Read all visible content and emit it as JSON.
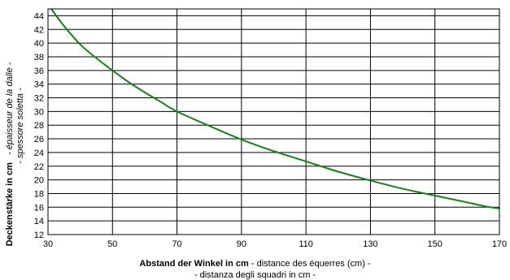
{
  "chart_data": {
    "type": "line",
    "title": "",
    "xlabel": {
      "bold": "Abstand der Winkel in cm",
      "rest": " - distance des équerres (cm) -",
      "line2": "- distanza degli squadri in cm -"
    },
    "ylabel": {
      "bold": "Deckenstärke in cm",
      "italic1": "   - épaisseur de la dalle -",
      "italic2": "- spessore soletta -"
    },
    "xlim": [
      30,
      170
    ],
    "ylim": [
      12,
      45
    ],
    "xticks": [
      30,
      50,
      70,
      90,
      110,
      130,
      150,
      170
    ],
    "xticklabels": [
      "30",
      "50",
      "70",
      "90",
      "110",
      "130",
      "150",
      "170"
    ],
    "yticks": [
      12,
      14,
      16,
      18,
      20,
      22,
      24,
      26,
      28,
      30,
      32,
      34,
      36,
      38,
      40,
      42,
      44
    ],
    "yticklabels": [
      "12",
      "14",
      "16",
      "18",
      "20",
      "22",
      "24",
      "26",
      "28",
      "30",
      "32",
      "34",
      "36",
      "38",
      "40",
      "42",
      "44"
    ],
    "grid": true,
    "line_color": "#1a7f1a",
    "series": [
      {
        "x": [
          31,
          35,
          40,
          45,
          50,
          55,
          60,
          65,
          70,
          80,
          90,
          100,
          110,
          120,
          130,
          140,
          150,
          160,
          166,
          170
        ],
        "y": [
          45,
          42.5,
          39.8,
          37.8,
          36,
          34.3,
          32.8,
          31.4,
          30,
          27.9,
          25.9,
          24.2,
          22.7,
          21.2,
          19.9,
          18.7,
          17.7,
          16.7,
          16.1,
          15.8
        ]
      }
    ]
  }
}
